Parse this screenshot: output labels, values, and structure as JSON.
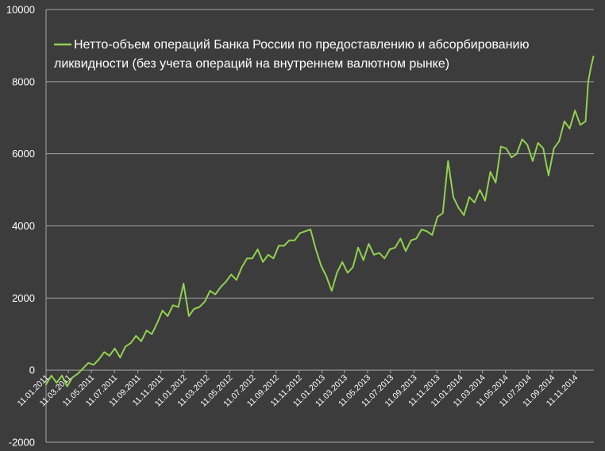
{
  "chart_data": {
    "type": "line",
    "title": "",
    "xlabel": "",
    "ylabel": "",
    "ylim": [
      -2000,
      10000
    ],
    "yticks": [
      -2000,
      0,
      2000,
      4000,
      6000,
      8000,
      10000
    ],
    "xlim": [
      "2011-01-11",
      "2014-12-31"
    ],
    "xtick_labels": [
      "11.01.2011",
      "11.03.2011",
      "11.05.2011",
      "11.07.2011",
      "11.09.2011",
      "11.11.2011",
      "11.01.2012",
      "11.03.2012",
      "11.05.2012",
      "11.07.2012",
      "11.09.2012",
      "11.11.2012",
      "11.01.2013",
      "11.03.2013",
      "11.05.2013",
      "11.07.2013",
      "11.09.2013",
      "11.11.2013",
      "11.01.2014",
      "11.03.2014",
      "11.05.2014",
      "11.07.2014",
      "11.09.2014",
      "11.11.2014"
    ],
    "grid": true,
    "legend": {
      "position": "top-left",
      "entries": [
        "Нетто-объем операций Банка России по предоставлению и абсорбированию ликвидности (без учета операций на внутреннем валютном рынке)"
      ]
    },
    "colors": {
      "background": "#3c3c3c",
      "grid": "#a6a6a6",
      "series": "#92d050",
      "text": "#ffffff"
    },
    "series": [
      {
        "name": "Нетто-объем операций Банка России по предоставлению и абсорбированию ликвидности (без учета операций на внутреннем валютном рынке)",
        "x": [
          "2011-01-11",
          "2011-01-25",
          "2011-02-08",
          "2011-02-22",
          "2011-03-08",
          "2011-03-22",
          "2011-04-05",
          "2011-04-19",
          "2011-05-03",
          "2011-05-17",
          "2011-05-31",
          "2011-06-14",
          "2011-06-28",
          "2011-07-12",
          "2011-07-26",
          "2011-08-09",
          "2011-08-23",
          "2011-09-06",
          "2011-09-20",
          "2011-10-04",
          "2011-10-18",
          "2011-11-01",
          "2011-11-15",
          "2011-11-29",
          "2011-12-13",
          "2011-12-27",
          "2012-01-10",
          "2012-01-24",
          "2012-02-07",
          "2012-02-21",
          "2012-03-06",
          "2012-03-20",
          "2012-04-03",
          "2012-04-17",
          "2012-05-01",
          "2012-05-15",
          "2012-05-29",
          "2012-06-12",
          "2012-06-26",
          "2012-07-10",
          "2012-07-24",
          "2012-08-07",
          "2012-08-21",
          "2012-09-04",
          "2012-09-18",
          "2012-10-02",
          "2012-10-16",
          "2012-10-30",
          "2012-11-13",
          "2012-11-27",
          "2012-12-11",
          "2012-12-25",
          "2013-01-08",
          "2013-01-22",
          "2013-02-05",
          "2013-02-19",
          "2013-03-05",
          "2013-03-19",
          "2013-04-02",
          "2013-04-16",
          "2013-04-30",
          "2013-05-14",
          "2013-05-28",
          "2013-06-11",
          "2013-06-25",
          "2013-07-09",
          "2013-07-23",
          "2013-08-06",
          "2013-08-20",
          "2013-09-03",
          "2013-09-17",
          "2013-10-01",
          "2013-10-15",
          "2013-10-29",
          "2013-11-12",
          "2013-11-26",
          "2013-12-10",
          "2013-12-24",
          "2014-01-07",
          "2014-01-21",
          "2014-02-04",
          "2014-02-18",
          "2014-03-04",
          "2014-03-18",
          "2014-04-01",
          "2014-04-15",
          "2014-04-29",
          "2014-05-13",
          "2014-05-27",
          "2014-06-10",
          "2014-06-24",
          "2014-07-08",
          "2014-07-22",
          "2014-08-05",
          "2014-08-19",
          "2014-09-02",
          "2014-09-16",
          "2014-09-30",
          "2014-10-14",
          "2014-10-28",
          "2014-11-11",
          "2014-11-25",
          "2014-12-09",
          "2014-12-16",
          "2014-12-23",
          "2014-12-30"
        ],
        "values": [
          -400,
          -150,
          -350,
          -150,
          -450,
          -200,
          -100,
          50,
          200,
          150,
          300,
          500,
          400,
          600,
          350,
          650,
          750,
          950,
          800,
          1100,
          1000,
          1300,
          1650,
          1500,
          1800,
          1750,
          2400,
          1500,
          1700,
          1750,
          1900,
          2200,
          2100,
          2300,
          2450,
          2650,
          2500,
          2850,
          3100,
          3100,
          3350,
          3000,
          3200,
          3100,
          3450,
          3450,
          3600,
          3600,
          3800,
          3850,
          3900,
          3350,
          2900,
          2600,
          2200,
          2700,
          3000,
          2700,
          2850,
          3400,
          3050,
          3500,
          3200,
          3250,
          3100,
          3350,
          3400,
          3650,
          3300,
          3600,
          3650,
          3900,
          3850,
          3750,
          4250,
          4350,
          5800,
          4800,
          4500,
          4300,
          4800,
          4650,
          5000,
          4700,
          5500,
          5200,
          6200,
          6150,
          5900,
          6000,
          6400,
          6250,
          5800,
          6300,
          6150,
          5400,
          6150,
          6350,
          6900,
          6700,
          7200,
          6800,
          6900,
          8000,
          8400,
          8700
        ]
      }
    ]
  }
}
